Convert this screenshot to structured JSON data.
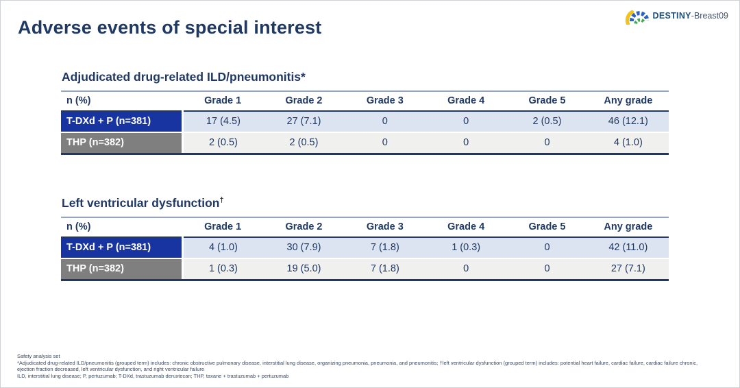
{
  "title": "Adverse events of special interest",
  "logo": {
    "icon": "destiny-fan-icon",
    "name": "DESTINY",
    "suffix": "-Breast09",
    "colors": {
      "yellow": "#f0c419",
      "blue": "#2d62c1",
      "green": "#3fae49"
    }
  },
  "colors": {
    "navy_text": "#1f3864",
    "blue_row_label_bg": "#1834a0",
    "gray_row_label_bg": "#7f7f7f",
    "blue_row_cell_bg": "#dde4f1",
    "gray_row_cell_bg": "#f0f0ee"
  },
  "tables": [
    {
      "heading_main": "Adjudicated drug-related ILD/pneumonitis*",
      "heading_sup": "",
      "columns": [
        "n (%)",
        "Grade 1",
        "Grade 2",
        "Grade 3",
        "Grade 4",
        "Grade 5",
        "Any grade"
      ],
      "rows": [
        {
          "label": "T-DXd + P (n=381)",
          "style": "blue",
          "values": [
            "17 (4.5)",
            "27 (7.1)",
            "0",
            "0",
            "2 (0.5)",
            "46 (12.1)"
          ]
        },
        {
          "label": "THP (n=382)",
          "style": "gray",
          "values": [
            "2 (0.5)",
            "2 (0.5)",
            "0",
            "0",
            "0",
            "4 (1.0)"
          ]
        }
      ]
    },
    {
      "heading_main": "Left ventricular dysfunction",
      "heading_sup": "†",
      "columns": [
        "n (%)",
        "Grade 1",
        "Grade 2",
        "Grade 3",
        "Grade 4",
        "Grade 5",
        "Any grade"
      ],
      "rows": [
        {
          "label": "T-DXd + P (n=381)",
          "style": "blue",
          "values": [
            "4 (1.0)",
            "30 (7.9)",
            "7 (1.8)",
            "1 (0.3)",
            "0",
            "42 (11.0)"
          ]
        },
        {
          "label": "THP (n=382)",
          "style": "gray",
          "values": [
            "1 (0.3)",
            "19 (5.0)",
            "7 (1.8)",
            "0",
            "0",
            "27 (7.1)"
          ]
        }
      ]
    }
  ],
  "footnotes": [
    "Safety analysis set",
    "*Adjudicated drug-related ILD/pneumonitis (grouped term) includes: chronic obstructive pulmonary disease, interstitial lung disease, organizing pneumonia, pneumonia, and pneumonitis; †left ventricular dysfunction (grouped term) includes: potential heart failure, cardiac failure, cardiac failure chronic, ejection fraction decreased, left ventricular dysfunction, and right ventricular failure",
    "ILD, interstitial lung disease; P, pertuzumab; T-DXd, trastuzumab deruxtecan; THP, taxane + trastuzumab + pertuzumab"
  ]
}
